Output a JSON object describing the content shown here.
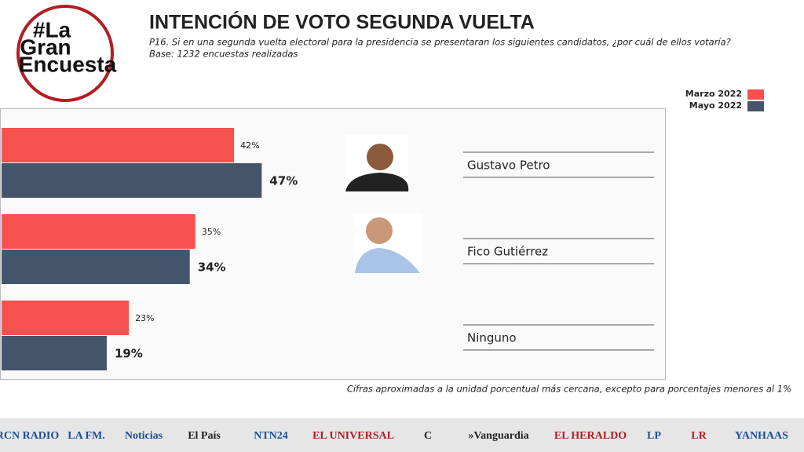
{
  "chart_data": {
    "type": "hbar",
    "title": "INTENCIÓN DE VOTO SEGUNDA VUELTA",
    "subtitle": "P16. Si en una segunda vuelta electoral para la presidencia se presentaran los siguientes candidatos, ¿por cuál de ellos votaría?",
    "base": "Base: 1232 encuestas realizadas",
    "brand": [
      "#La",
      "Gran",
      "Encuesta"
    ],
    "footnote": "Cifras aproximadas a la unidad porcentual más cercana, excepto para porcentajes menores al 1%",
    "categories": [
      "Gustavo Petro",
      "Fico Gutiérrez",
      "Ninguno"
    ],
    "series": [
      {
        "name": "Marzo 2022",
        "color": "#f4514f",
        "values": [
          42,
          35,
          23
        ],
        "value_labels": [
          "42%",
          "35%",
          "23%"
        ]
      },
      {
        "name": "Mayo 2022",
        "color": "#44546a",
        "values": [
          47,
          34,
          19
        ],
        "value_labels": [
          "47%",
          "34%",
          "19%"
        ]
      }
    ],
    "legend": "top-right"
  },
  "footer": {
    "logos": [
      "RCN RADIO",
      "LA FM.",
      "Noticias",
      "El País",
      "NTN24",
      "EL UNIVERSAL",
      "C",
      "»Vanguardia",
      "EL HERALDO",
      "LP",
      "LR",
      "YANHAAS"
    ]
  }
}
